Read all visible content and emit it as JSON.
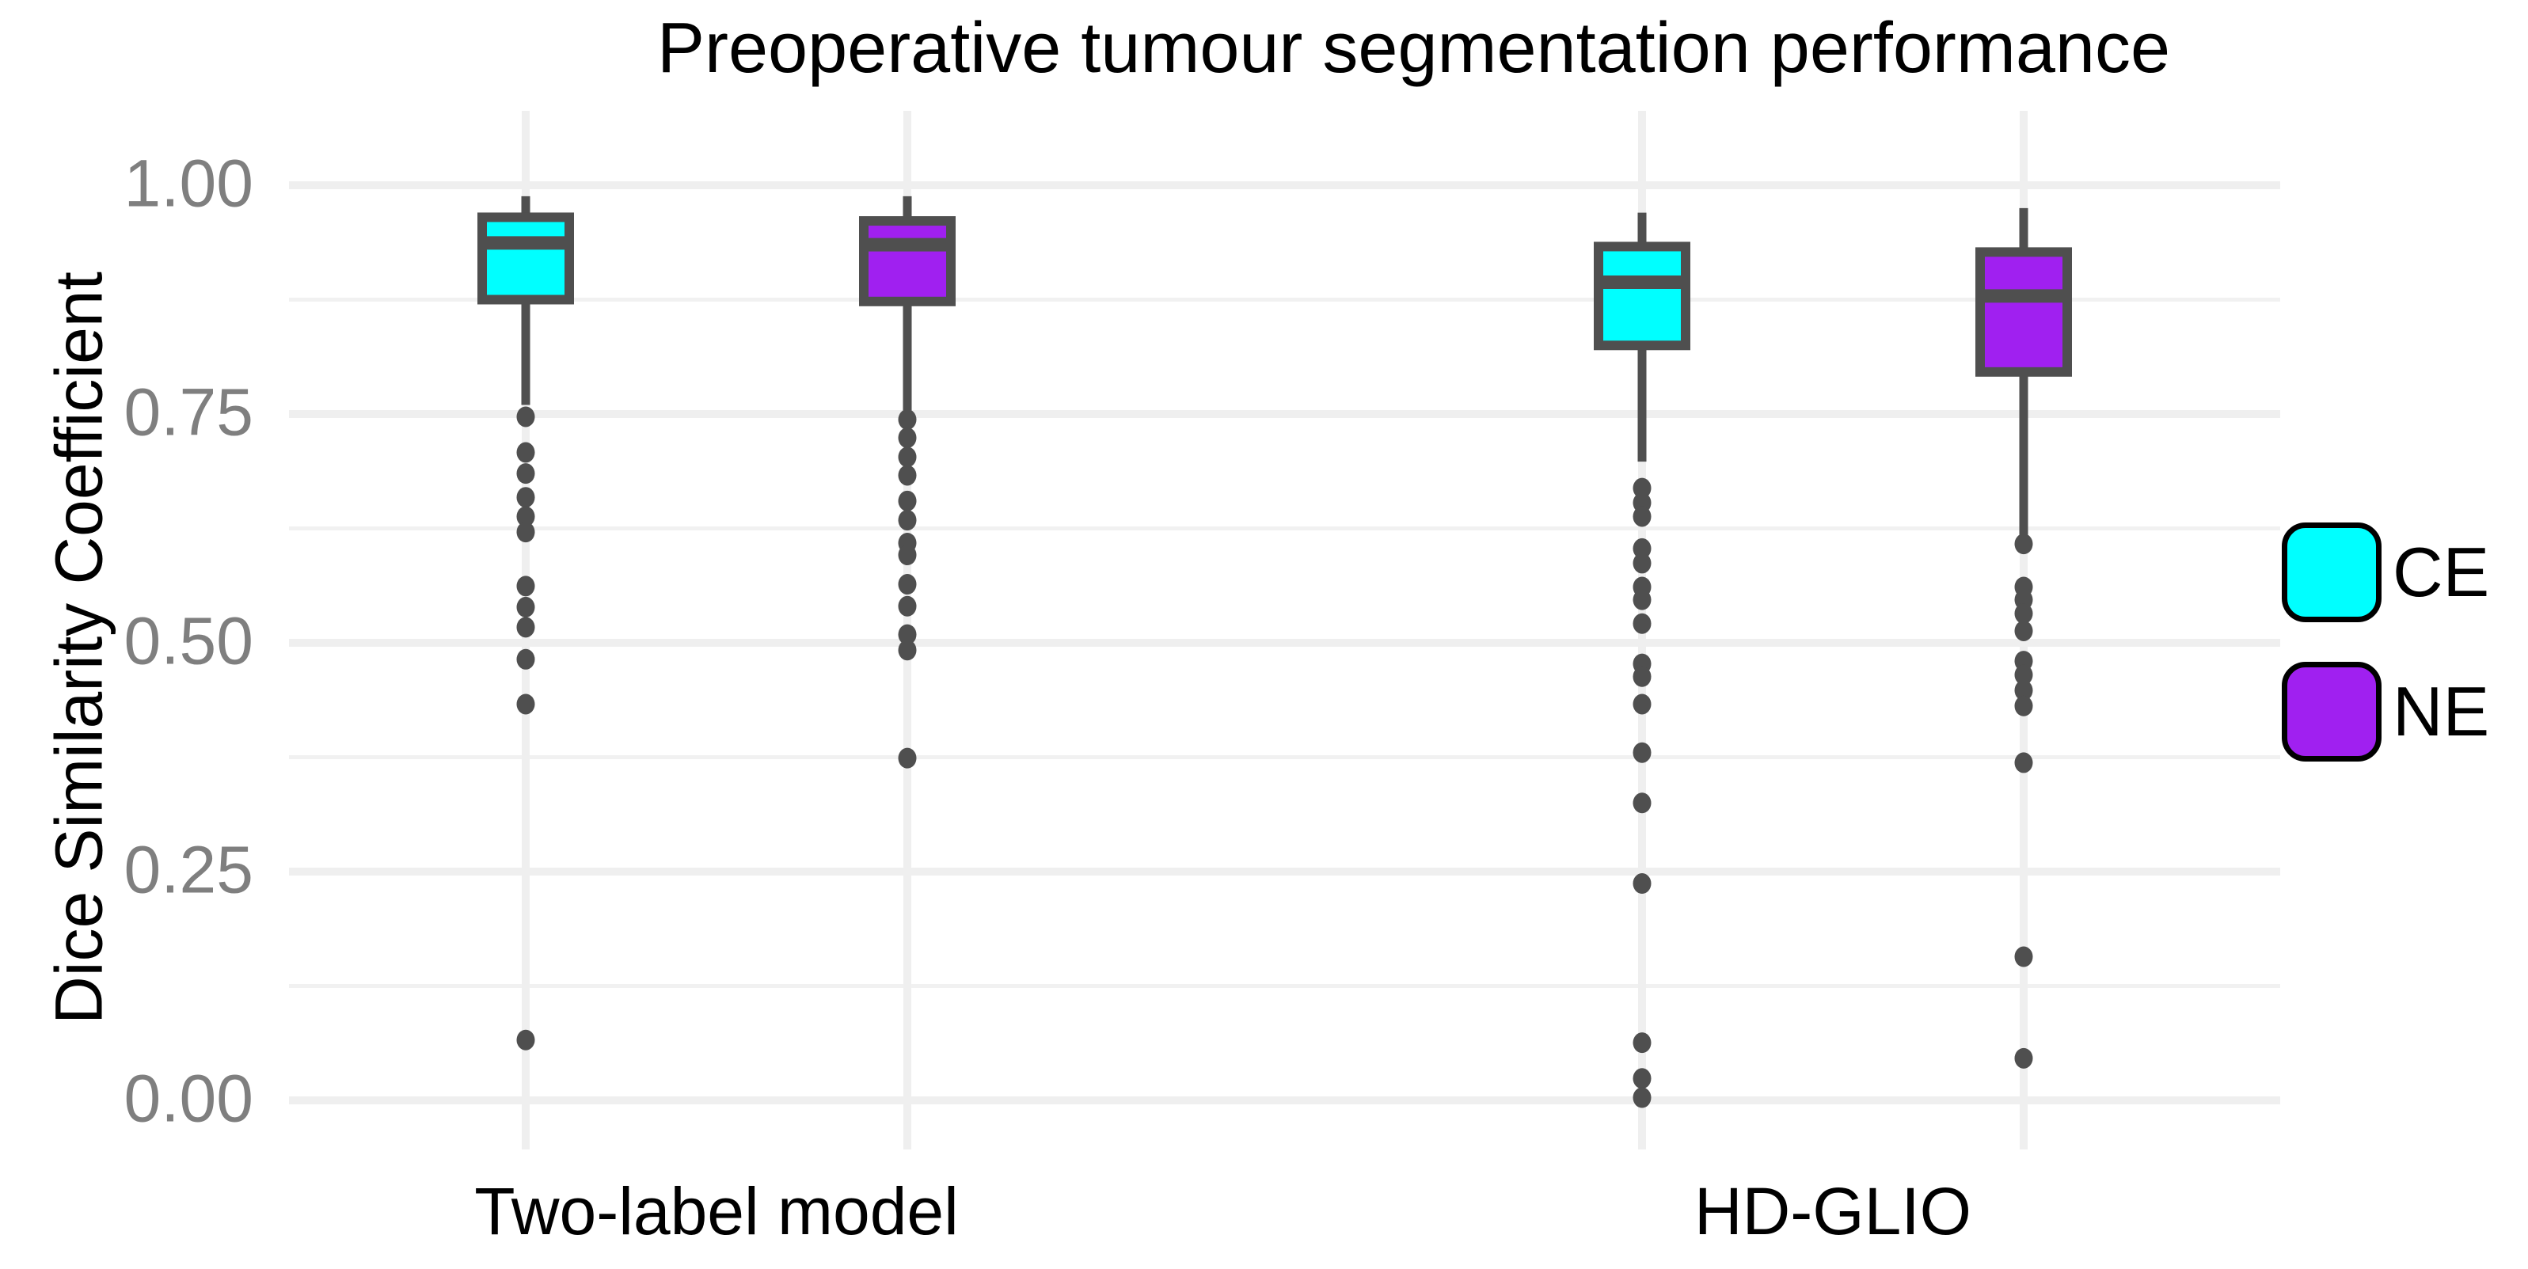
{
  "chart": {
    "title": "Preoperative tumour segmentation performance",
    "y_axis": {
      "title": "Dice Similarity Coefficient",
      "tick_labels": [
        "1.00",
        "0.75",
        "0.50",
        "0.25",
        "0.00"
      ],
      "tick_values": [
        1.0,
        0.75,
        0.5,
        0.25,
        0.0
      ]
    },
    "x_axis": {
      "group_labels": [
        "Two-label model",
        "HD-GLIO"
      ]
    },
    "legend": {
      "items": [
        {
          "label": "CE",
          "color": "#00FFFF"
        },
        {
          "label": "NE",
          "color": "#A020F0"
        }
      ]
    }
  },
  "chart_data": {
    "type": "box",
    "title": "Preoperative tumour segmentation performance",
    "xlabel": "",
    "ylabel": "Dice Similarity Coefficient",
    "ylim": [
      0.0,
      1.0
    ],
    "yticks": [
      0.0,
      0.25,
      0.5,
      0.75,
      1.0
    ],
    "minor_gridlines": [
      0.125,
      0.375,
      0.625,
      0.875
    ],
    "grid": true,
    "legend_position": "right",
    "categories": [
      "Two-label model",
      "HD-GLIO"
    ],
    "series": [
      {
        "name": "CE",
        "color": "#00FFFF",
        "boxes": [
          {
            "group": "Two-label model",
            "whisker_low": 0.76,
            "q1": 0.875,
            "median": 0.937,
            "q3": 0.965,
            "whisker_high": 0.988,
            "outliers": [
              0.747,
              0.708,
              0.685,
              0.659,
              0.638,
              0.621,
              0.562,
              0.539,
              0.517,
              0.482,
              0.433,
              0.066
            ]
          },
          {
            "group": "HD-GLIO",
            "whisker_low": 0.698,
            "q1": 0.825,
            "median": 0.894,
            "q3": 0.933,
            "whisker_high": 0.97,
            "outliers": [
              0.669,
              0.653,
              0.638,
              0.603,
              0.587,
              0.561,
              0.547,
              0.521,
              0.477,
              0.463,
              0.433,
              0.38,
              0.325,
              0.237,
              0.063,
              0.024,
              0.003
            ]
          }
        ]
      },
      {
        "name": "NE",
        "color": "#A020F0",
        "boxes": [
          {
            "group": "Two-label model",
            "whisker_low": 0.754,
            "q1": 0.873,
            "median": 0.935,
            "q3": 0.961,
            "whisker_high": 0.988,
            "outliers": [
              0.744,
              0.724,
              0.703,
              0.683,
              0.655,
              0.634,
              0.609,
              0.596,
              0.564,
              0.54,
              0.509,
              0.492,
              0.374
            ]
          },
          {
            "group": "HD-GLIO",
            "whisker_low": 0.614,
            "q1": 0.796,
            "median": 0.879,
            "q3": 0.927,
            "whisker_high": 0.975,
            "outliers": [
              0.608,
              0.561,
              0.547,
              0.532,
              0.513,
              0.48,
              0.465,
              0.448,
              0.431,
              0.369,
              0.157,
              0.046
            ]
          }
        ]
      }
    ],
    "style": {
      "box_border_color": "#4F4F4F",
      "outlier_color": "#4F4F4F",
      "major_grid_color": "#EFEFEF",
      "minor_grid_color": "#F1F1F1",
      "tick_label_color": "#7f7f7f"
    }
  }
}
